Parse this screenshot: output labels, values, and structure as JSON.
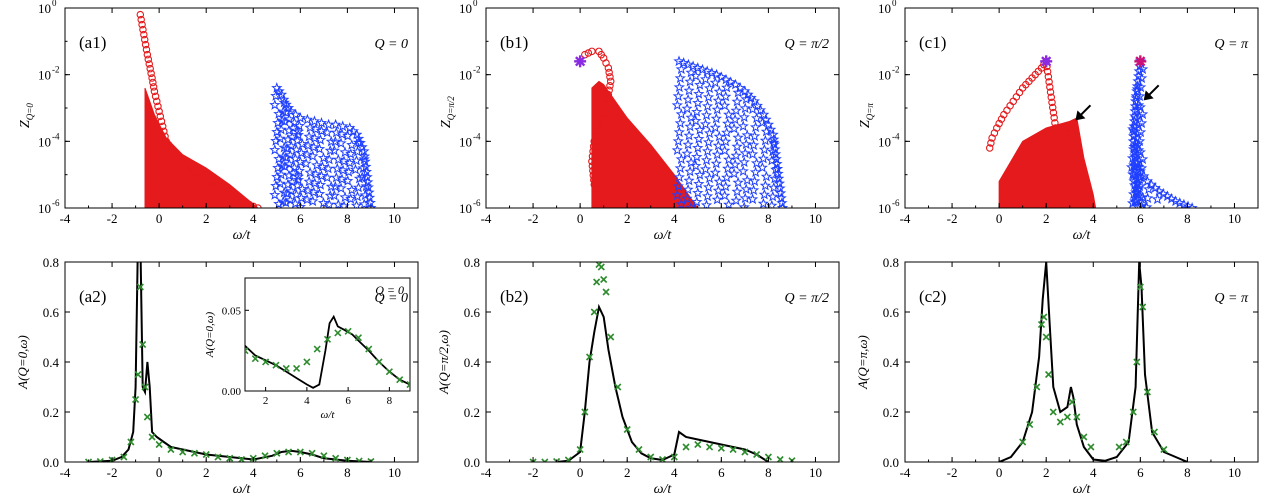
{
  "figure": {
    "xlabel": "ω/t"
  },
  "chart_data": [
    {
      "id": "a1",
      "type": "scatter",
      "panel_label": "(a1)",
      "annotation": "Q = 0",
      "ylabel_main": "Z",
      "ylabel_sub": "Q=0",
      "xlabel": "ω/t",
      "xlim": [
        -4,
        11
      ],
      "xticks": [
        -4,
        -2,
        0,
        2,
        4,
        6,
        8,
        10
      ],
      "yscale": "log",
      "ylim_exp": [
        -6,
        0
      ],
      "yticks_exp": [
        -6,
        -4,
        -2,
        0
      ],
      "tick_base": "10",
      "series": [
        {
          "marker": "circle",
          "color": "#e41a1c",
          "x": [
            -0.8,
            -0.5,
            -0.3,
            -0.2,
            -0.1,
            0.0,
            0.1,
            0.2,
            0.3,
            0.5,
            0.7,
            1.0,
            1.3,
            1.6,
            2.0,
            2.5,
            3.0,
            3.5,
            4.0,
            4.2
          ],
          "y_exp": [
            -0.2,
            -1.4,
            -2.1,
            -2.5,
            -2.8,
            -3.1,
            -3.4,
            -3.7,
            -4.0,
            -4.2,
            -4.4,
            -4.6,
            -4.8,
            -5.0,
            -5.2,
            -5.4,
            -5.6,
            -5.8,
            -5.95,
            -6.0
          ],
          "fill_band": {
            "x": [
              -0.6,
              -0.2,
              0.3,
              1.0,
              2.0,
              3.0,
              4.2
            ],
            "top_exp": [
              -2.4,
              -3.2,
              -3.9,
              -4.4,
              -4.8,
              -5.3,
              -6.0
            ]
          }
        },
        {
          "marker": "star",
          "color": "#1f3fff",
          "x": [
            5.0,
            5.2,
            5.4,
            5.6,
            5.8,
            6.0,
            6.3,
            6.6,
            6.9,
            7.2,
            7.5,
            7.8,
            8.1,
            8.4,
            8.7,
            9.0
          ],
          "y_exp": [
            -2.4,
            -2.6,
            -2.9,
            -3.1,
            -3.2,
            -3.3,
            -3.35,
            -3.4,
            -3.45,
            -3.5,
            -3.5,
            -3.55,
            -3.6,
            -3.8,
            -4.3,
            -6.0
          ],
          "band_bottom_exp": -6.0
        }
      ]
    },
    {
      "id": "b1",
      "type": "scatter",
      "panel_label": "(b1)",
      "annotation": "Q = π/2",
      "ylabel_main": "Z",
      "ylabel_sub": "Q=π/2",
      "xlabel": "ω/t",
      "xlim": [
        -4,
        11
      ],
      "xticks": [
        -4,
        -2,
        0,
        2,
        4,
        6,
        8,
        10
      ],
      "yscale": "log",
      "ylim_exp": [
        -6,
        0
      ],
      "yticks_exp": [
        -6,
        -4,
        -2,
        0
      ],
      "tick_base": "10",
      "series": [
        {
          "marker": "circle",
          "color": "#e41a1c",
          "x": [
            0.2,
            0.5,
            0.8,
            1.0,
            1.2,
            1.3,
            1.2,
            1.0,
            0.8,
            0.6,
            0.5,
            0.6,
            0.8
          ],
          "y_exp": [
            -1.4,
            -1.3,
            -1.3,
            -1.5,
            -1.8,
            -2.2,
            -2.6,
            -3.0,
            -3.5,
            -4.0,
            -4.6,
            -5.3,
            -6.0
          ],
          "fill_band": {
            "x": [
              0.5,
              0.8,
              1.0,
              1.5,
              2.0,
              3.0,
              4.0,
              5.0
            ],
            "top_exp": [
              -2.4,
              -2.2,
              -2.3,
              -2.8,
              -3.3,
              -4.1,
              -5.0,
              -6.0
            ]
          }
        },
        {
          "marker": "star",
          "color": "#1f3fff",
          "x": [
            4.2,
            4.6,
            5.0,
            5.4,
            5.8,
            6.2,
            6.6,
            7.0,
            7.4,
            7.8,
            8.2,
            8.6
          ],
          "y_exp": [
            -1.6,
            -1.7,
            -1.8,
            -1.9,
            -2.0,
            -2.15,
            -2.3,
            -2.5,
            -2.8,
            -3.2,
            -3.8,
            -6.0
          ],
          "band_bottom_exp": -6.0
        }
      ],
      "special_points": [
        {
          "x": 0.0,
          "y_exp": -1.6,
          "color": "#8a2be2",
          "marker": "asterisk"
        }
      ]
    },
    {
      "id": "c1",
      "type": "scatter",
      "panel_label": "(c1)",
      "annotation": "Q = π",
      "ylabel_main": "Z",
      "ylabel_sub": "Q=π",
      "xlabel": "ω/t",
      "xlim": [
        -4,
        11
      ],
      "xticks": [
        -4,
        -2,
        0,
        2,
        4,
        6,
        8,
        10
      ],
      "yscale": "log",
      "ylim_exp": [
        -6,
        0
      ],
      "yticks_exp": [
        -6,
        -4,
        -2,
        0
      ],
      "tick_base": "10",
      "series": [
        {
          "marker": "circle",
          "color": "#e41a1c",
          "x": [
            -0.4,
            -0.3,
            -0.1,
            0.2,
            0.6,
            1.0,
            1.4,
            1.8,
            2.0,
            2.4,
            2.8,
            3.2
          ],
          "y_exp": [
            -4.2,
            -3.9,
            -3.6,
            -3.2,
            -2.8,
            -2.4,
            -2.1,
            -1.8,
            -1.6,
            -3.6,
            -3.7,
            -3.8
          ],
          "fill_band": {
            "x": [
              0.0,
              0.5,
              1.0,
              2.0,
              3.0,
              3.3,
              3.6,
              4.0,
              4.1
            ],
            "top_exp": [
              -5.2,
              -4.6,
              -4.0,
              -3.6,
              -3.4,
              -3.3,
              -4.5,
              -5.6,
              -6.0
            ]
          }
        },
        {
          "marker": "star",
          "color": "#1f3fff",
          "x": [
            6.0,
            5.9,
            5.8,
            5.75,
            5.7,
            5.8,
            6.0,
            6.3,
            6.8,
            7.5,
            8.2
          ],
          "y_exp": [
            -1.6,
            -2.2,
            -2.8,
            -3.4,
            -4.0,
            -4.5,
            -4.9,
            -5.2,
            -5.5,
            -5.8,
            -6.0
          ],
          "band_bottom_exp": -6.0
        }
      ],
      "special_points": [
        {
          "x": 2.0,
          "y_exp": -1.6,
          "color": "#8a2be2",
          "marker": "asterisk"
        },
        {
          "x": 6.0,
          "y_exp": -1.6,
          "color": "#cc1177",
          "marker": "asterisk"
        }
      ],
      "arrows": [
        {
          "x": 3.2,
          "y_exp": -3.4
        },
        {
          "x": 6.1,
          "y_exp": -2.8
        }
      ]
    },
    {
      "id": "a2",
      "type": "line",
      "panel_label": "(a2)",
      "annotation": "Q = 0",
      "ylabel": "A(Q=0,ω)",
      "xlabel": "ω/t",
      "xlim": [
        -4,
        11
      ],
      "xticks": [
        -4,
        -2,
        0,
        2,
        4,
        6,
        8,
        10
      ],
      "ylim": [
        0,
        0.8
      ],
      "yticks": [
        0.0,
        0.2,
        0.4,
        0.6,
        0.8
      ],
      "series": [
        {
          "name": "",
          "style": "line",
          "color": "#000000",
          "x": [
            -3.0,
            -2.0,
            -1.6,
            -1.3,
            -1.1,
            -1.0,
            -0.9,
            -0.8,
            -0.75,
            -0.7,
            -0.6,
            -0.5,
            -0.4,
            -0.3,
            -0.1,
            0.2,
            0.5,
            1.0,
            2.0,
            3.0,
            4.0,
            4.8,
            5.2,
            5.6,
            6.0,
            6.5,
            7.0,
            8.0,
            9.0
          ],
          "y": [
            0.0,
            0.005,
            0.02,
            0.05,
            0.12,
            0.3,
            0.9,
            0.9,
            0.6,
            0.3,
            0.28,
            0.4,
            0.3,
            0.12,
            0.1,
            0.08,
            0.06,
            0.05,
            0.03,
            0.02,
            0.01,
            0.025,
            0.04,
            0.045,
            0.04,
            0.03,
            0.015,
            0.005,
            0.0
          ]
        },
        {
          "name": "",
          "style": "x",
          "color": "#2e8b2e",
          "x": [
            -3.0,
            -2.5,
            -2.0,
            -1.5,
            -1.2,
            -1.0,
            -0.9,
            -0.8,
            -0.7,
            -0.6,
            -0.5,
            -0.3,
            0.0,
            0.5,
            1.0,
            1.5,
            2.0,
            2.5,
            3.0,
            3.5,
            4.0,
            4.5,
            5.0,
            5.5,
            6.0,
            6.5,
            7.0,
            7.5,
            8.0,
            8.5,
            9.0
          ],
          "y": [
            0.0,
            0.002,
            0.008,
            0.02,
            0.08,
            0.25,
            0.35,
            0.7,
            0.47,
            0.3,
            0.18,
            0.1,
            0.07,
            0.05,
            0.04,
            0.035,
            0.03,
            0.02,
            0.015,
            0.01,
            0.015,
            0.025,
            0.035,
            0.04,
            0.04,
            0.035,
            0.025,
            0.015,
            0.008,
            0.004,
            0.002
          ]
        }
      ],
      "inset": {
        "annotation": "Q = 0",
        "ylabel": "A(Q=0,ω)",
        "xlabel": "ω/t",
        "xlim": [
          1,
          9
        ],
        "xticks": [
          2,
          4,
          6,
          8
        ],
        "ylim": [
          0,
          0.07
        ],
        "yticks": [
          0.0,
          0.05
        ],
        "series": [
          {
            "style": "line",
            "color": "#000000",
            "x": [
              1.0,
              1.5,
              2.0,
              2.5,
              3.0,
              3.5,
              4.0,
              4.3,
              4.6,
              4.9,
              5.1,
              5.3,
              5.5,
              5.8,
              6.2,
              6.6,
              7.0,
              7.5,
              8.0,
              8.5,
              9.0
            ],
            "y": [
              0.028,
              0.022,
              0.019,
              0.016,
              0.012,
              0.008,
              0.004,
              0.002,
              0.004,
              0.025,
              0.042,
              0.046,
              0.04,
              0.038,
              0.035,
              0.03,
              0.025,
              0.018,
              0.012,
              0.007,
              0.004
            ]
          },
          {
            "style": "x",
            "color": "#2e8b2e",
            "x": [
              1.0,
              1.5,
              2.0,
              2.5,
              3.0,
              3.5,
              4.0,
              4.5,
              5.0,
              5.5,
              6.0,
              6.5,
              7.0,
              7.5,
              8.0,
              8.5,
              9.0
            ],
            "y": [
              0.025,
              0.02,
              0.018,
              0.016,
              0.014,
              0.014,
              0.018,
              0.026,
              0.032,
              0.036,
              0.037,
              0.033,
              0.026,
              0.018,
              0.012,
              0.007,
              0.004
            ]
          }
        ]
      }
    },
    {
      "id": "b2",
      "type": "line",
      "panel_label": "(b2)",
      "annotation": "Q = π/2",
      "ylabel": "A(Q=π/2,ω)",
      "xlabel": "ω/t",
      "xlim": [
        -4,
        11
      ],
      "xticks": [
        -4,
        -2,
        0,
        2,
        4,
        6,
        8,
        10
      ],
      "ylim": [
        0,
        0.8
      ],
      "yticks": [
        0.0,
        0.2,
        0.4,
        0.6,
        0.8
      ],
      "series": [
        {
          "name": "",
          "style": "line",
          "color": "#000000",
          "x": [
            -1.0,
            -0.5,
            0.0,
            0.2,
            0.4,
            0.6,
            0.8,
            1.0,
            1.2,
            1.5,
            1.8,
            2.2,
            2.6,
            3.0,
            3.5,
            4.0,
            4.2,
            4.5,
            5.0,
            5.5,
            6.0,
            6.5,
            7.0,
            7.5,
            8.0
          ],
          "y": [
            0.0,
            0.005,
            0.04,
            0.2,
            0.4,
            0.52,
            0.62,
            0.58,
            0.45,
            0.3,
            0.18,
            0.08,
            0.035,
            0.015,
            0.008,
            0.03,
            0.12,
            0.1,
            0.09,
            0.08,
            0.07,
            0.06,
            0.05,
            0.03,
            0.0
          ]
        },
        {
          "name": "",
          "style": "x",
          "color": "#2e8b2e",
          "x": [
            -2.0,
            -1.5,
            -1.0,
            -0.5,
            0.0,
            0.2,
            0.4,
            0.6,
            0.7,
            0.8,
            0.9,
            1.0,
            1.1,
            1.3,
            1.6,
            2.0,
            2.5,
            3.0,
            3.5,
            4.0,
            4.5,
            5.0,
            5.5,
            6.0,
            6.5,
            7.0,
            7.5,
            8.0,
            8.5,
            9.0
          ],
          "y": [
            0.0,
            0.0,
            0.002,
            0.008,
            0.05,
            0.2,
            0.42,
            0.6,
            0.72,
            0.79,
            0.78,
            0.73,
            0.68,
            0.5,
            0.3,
            0.13,
            0.05,
            0.02,
            0.01,
            0.02,
            0.06,
            0.07,
            0.06,
            0.055,
            0.05,
            0.04,
            0.03,
            0.02,
            0.01,
            0.005
          ]
        }
      ]
    },
    {
      "id": "c2",
      "type": "line",
      "panel_label": "(c2)",
      "annotation": "Q = π",
      "ylabel": "A(Q=π,ω)",
      "xlabel": "ω/t",
      "xlim": [
        -4,
        11
      ],
      "xticks": [
        -4,
        -2,
        0,
        2,
        4,
        6,
        8,
        10
      ],
      "ylim": [
        0,
        0.8
      ],
      "yticks": [
        0.0,
        0.2,
        0.4,
        0.6,
        0.8
      ],
      "series": [
        {
          "name": "",
          "style": "line",
          "color": "#000000",
          "x": [
            0.0,
            0.5,
            1.0,
            1.4,
            1.7,
            1.85,
            2.0,
            2.15,
            2.3,
            2.6,
            2.9,
            3.05,
            3.15,
            3.3,
            3.6,
            4.0,
            4.5,
            5.0,
            5.5,
            5.8,
            5.95,
            6.05,
            6.2,
            6.5,
            7.0,
            8.0
          ],
          "y": [
            0.0,
            0.02,
            0.08,
            0.2,
            0.42,
            0.65,
            0.8,
            0.55,
            0.3,
            0.2,
            0.22,
            0.3,
            0.26,
            0.15,
            0.06,
            0.01,
            0.005,
            0.02,
            0.08,
            0.3,
            0.8,
            0.7,
            0.35,
            0.12,
            0.04,
            0.0
          ]
        },
        {
          "name": "",
          "style": "x",
          "color": "#2e8b2e",
          "x": [
            1.0,
            1.3,
            1.6,
            1.8,
            1.9,
            2.0,
            2.1,
            2.3,
            2.6,
            2.9,
            3.1,
            3.3,
            3.6,
            3.9,
            5.1,
            5.4,
            5.7,
            5.85,
            6.0,
            6.1,
            6.3,
            6.6,
            7.0
          ],
          "y": [
            0.08,
            0.15,
            0.3,
            0.55,
            0.58,
            0.5,
            0.35,
            0.2,
            0.16,
            0.18,
            0.24,
            0.18,
            0.1,
            0.06,
            0.06,
            0.08,
            0.2,
            0.4,
            0.7,
            0.62,
            0.28,
            0.12,
            0.05
          ]
        }
      ]
    }
  ]
}
